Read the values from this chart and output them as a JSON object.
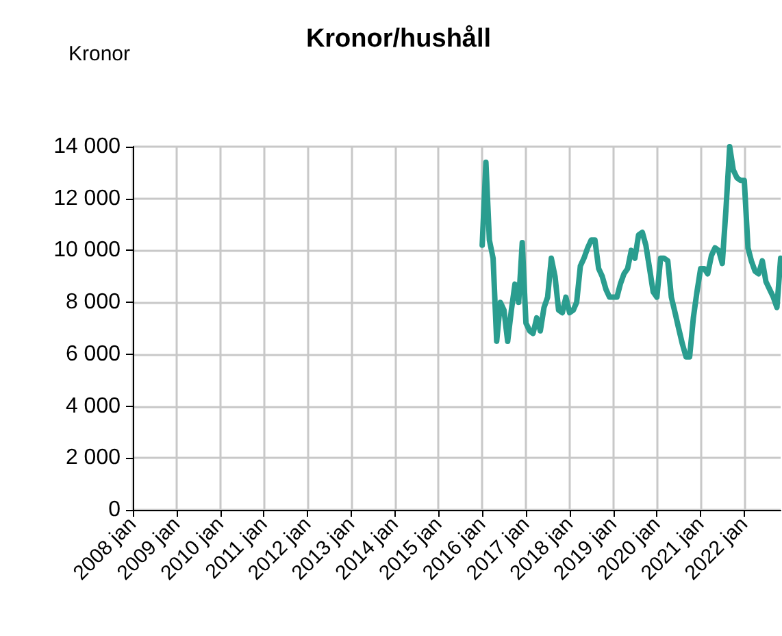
{
  "chart_data": {
    "type": "line",
    "title": "Kronor/hushåll",
    "ylabel": "Kronor",
    "x": [
      "2016-01",
      "2016-02",
      "2016-03",
      "2016-04",
      "2016-05",
      "2016-06",
      "2016-07",
      "2016-08",
      "2016-09",
      "2016-10",
      "2016-11",
      "2016-12",
      "2017-01",
      "2017-02",
      "2017-03",
      "2017-04",
      "2017-05",
      "2017-06",
      "2017-07",
      "2017-08",
      "2017-09",
      "2017-10",
      "2017-11",
      "2017-12",
      "2018-01",
      "2018-02",
      "2018-03",
      "2018-04",
      "2018-05",
      "2018-06",
      "2018-07",
      "2018-08",
      "2018-09",
      "2018-10",
      "2018-11",
      "2018-12",
      "2019-01",
      "2019-02",
      "2019-03",
      "2019-04",
      "2019-05",
      "2019-06",
      "2019-07",
      "2019-08",
      "2019-09",
      "2019-10",
      "2019-11",
      "2019-12",
      "2020-01",
      "2020-02",
      "2020-03",
      "2020-04",
      "2020-05",
      "2020-06",
      "2020-07",
      "2020-08",
      "2020-09",
      "2020-10",
      "2020-11",
      "2020-12",
      "2021-01",
      "2021-02",
      "2021-03",
      "2021-04",
      "2021-05",
      "2021-06",
      "2021-07",
      "2021-08",
      "2021-09",
      "2021-10",
      "2021-11",
      "2021-12",
      "2022-01",
      "2022-02",
      "2022-03",
      "2022-04",
      "2022-05",
      "2022-06",
      "2022-07",
      "2022-08",
      "2022-09",
      "2022-10",
      "2022-11"
    ],
    "series": [
      {
        "color": "#2a9d8f",
        "values": [
          10200,
          13400,
          10400,
          9700,
          6500,
          8000,
          7700,
          6500,
          7700,
          8700,
          8000,
          10300,
          7200,
          6900,
          6800,
          7400,
          6900,
          7800,
          8200,
          9700,
          9000,
          7700,
          7600,
          8200,
          7600,
          7700,
          8000,
          9400,
          9700,
          10100,
          10400,
          10400,
          9300,
          9000,
          8500,
          8200,
          8200,
          8200,
          8700,
          9100,
          9300,
          10000,
          9700,
          10600,
          10700,
          10200,
          9300,
          8400,
          8200,
          9700,
          9700,
          9600,
          8200,
          7600,
          7000,
          6400,
          5900,
          5900,
          7400,
          8400,
          9300,
          9300,
          9100,
          9800,
          10100,
          10000,
          9500,
          11600,
          14000,
          13100,
          12800,
          12700,
          12700,
          10100,
          9600,
          9200,
          9100,
          9600,
          8800,
          8500,
          8200,
          7800,
          9700
        ]
      }
    ],
    "xlim": [
      "2008-01",
      "2022-11"
    ],
    "xticks": [
      {
        "value": "2008-01",
        "label": "2008 jan"
      },
      {
        "value": "2009-01",
        "label": "2009 jan"
      },
      {
        "value": "2010-01",
        "label": "2010 jan"
      },
      {
        "value": "2011-01",
        "label": "2011 jan"
      },
      {
        "value": "2012-01",
        "label": "2012 jan"
      },
      {
        "value": "2013-01",
        "label": "2013 jan"
      },
      {
        "value": "2014-01",
        "label": "2014 jan"
      },
      {
        "value": "2015-01",
        "label": "2015 jan"
      },
      {
        "value": "2016-01",
        "label": "2016 jan"
      },
      {
        "value": "2017-01",
        "label": "2017 jan"
      },
      {
        "value": "2018-01",
        "label": "2018 jan"
      },
      {
        "value": "2019-01",
        "label": "2019 jan"
      },
      {
        "value": "2020-01",
        "label": "2020 jan"
      },
      {
        "value": "2021-01",
        "label": "2021 jan"
      },
      {
        "value": "2022-01",
        "label": "2022 jan"
      }
    ],
    "ylim": [
      0,
      14000
    ],
    "yticks": [
      0,
      {
        "value": 2000,
        "label": "2 000"
      },
      {
        "value": 4000,
        "label": "4 000"
      },
      {
        "value": 6000,
        "label": "6 000"
      },
      {
        "value": 8000,
        "label": "8 000"
      },
      {
        "value": 10000,
        "label": "10 000"
      },
      {
        "value": 12000,
        "label": "12 000"
      },
      {
        "value": 14000,
        "label": "14 000"
      }
    ],
    "grid": true,
    "marker": "none",
    "line_style": "solid"
  }
}
